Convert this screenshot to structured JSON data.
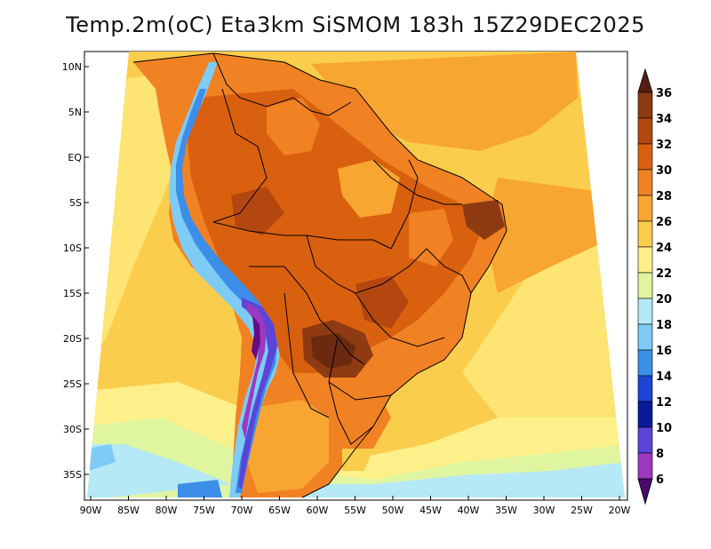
{
  "title": "Temp.2m(oC) Eta3km SiSMOM 183h 15Z29DEC2025",
  "map": {
    "lat_labels": [
      "10N",
      "5N",
      "EQ",
      "5S",
      "10S",
      "15S",
      "20S",
      "25S",
      "30S",
      "35S"
    ],
    "lon_labels": [
      "90W",
      "85W",
      "80W",
      "75W",
      "70W",
      "65W",
      "60W",
      "55W",
      "50W",
      "45W",
      "40W",
      "35W",
      "30W",
      "25W",
      "20W"
    ]
  },
  "colorbar": {
    "labels": [
      "36",
      "34",
      "32",
      "30",
      "28",
      "26",
      "24",
      "22",
      "20",
      "18",
      "16",
      "14",
      "12",
      "10",
      "8",
      "6"
    ],
    "colors": [
      "#6b2a10",
      "#8e3a12",
      "#b4470f",
      "#d9600e",
      "#f08224",
      "#f7a631",
      "#fbcd4c",
      "#fdf08a",
      "#dff5a0",
      "#b6e9f6",
      "#7ecbf5",
      "#3d8ee8",
      "#1c46d3",
      "#0a1a9a",
      "#5a45d8",
      "#9c39c0",
      "#660d86"
    ],
    "top_arrow_color": "#552010",
    "bottom_arrow_color": "#4a0a6a"
  }
}
